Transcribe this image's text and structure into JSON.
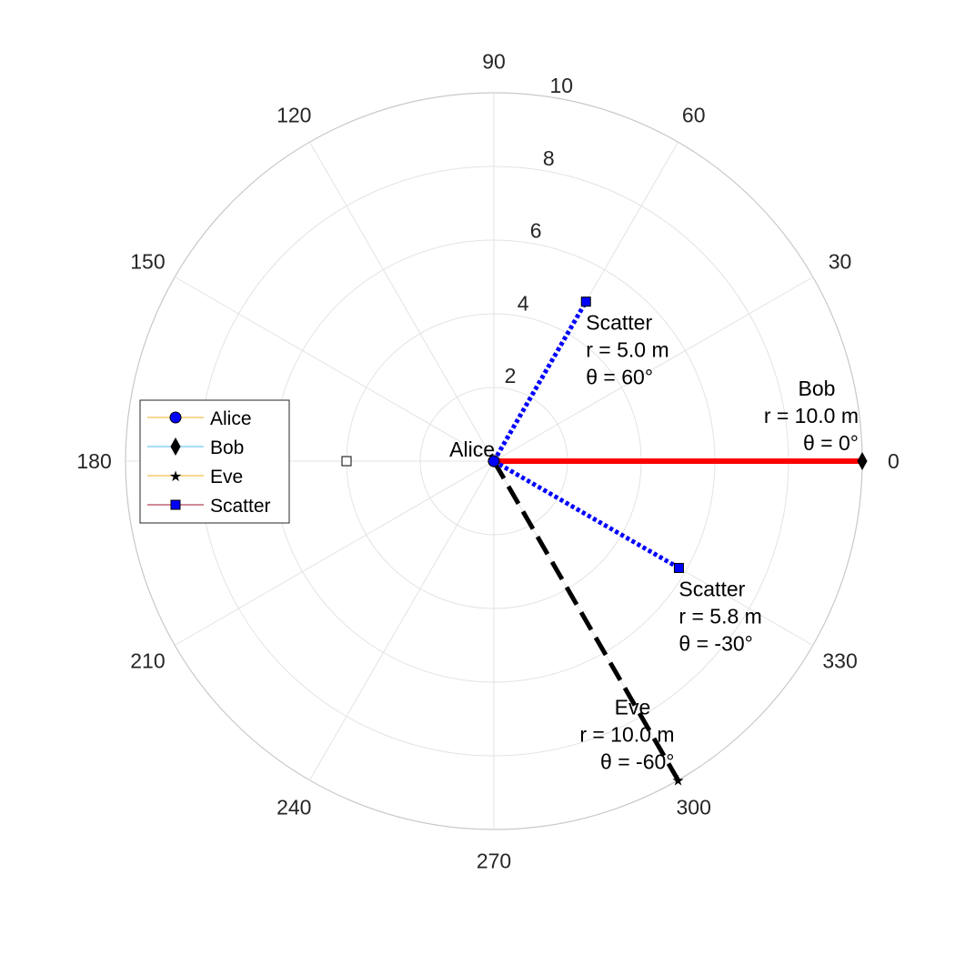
{
  "chart_data": {
    "type": "polar",
    "rlim": [
      0,
      10
    ],
    "r_ticks": [
      "2",
      "4",
      "6",
      "8",
      "10"
    ],
    "theta_ticks": [
      "0",
      "30",
      "60",
      "90",
      "120",
      "150",
      "180",
      "210",
      "240",
      "270",
      "300",
      "330"
    ],
    "grid": true,
    "legend": {
      "placement": "left",
      "entries": [
        {
          "name": "Alice",
          "marker": "circle",
          "line_color": "#EDB120",
          "marker_fill": "#0000FF"
        },
        {
          "name": "Bob",
          "marker": "diamond",
          "line_color": "#4DBEEE",
          "marker_fill": "#000000"
        },
        {
          "name": "Eve",
          "marker": "star",
          "line_color": "#EDB120",
          "marker_fill": "#000000"
        },
        {
          "name": "Scatter",
          "marker": "square",
          "line_color": "#A2142F",
          "marker_fill": "#0000FF"
        }
      ]
    },
    "points": [
      {
        "name": "Alice",
        "r": 0,
        "theta": 0,
        "marker": "circle",
        "color": "#0000FF"
      },
      {
        "name": "Bob",
        "r": 10.0,
        "theta": 0,
        "marker": "diamond",
        "color": "#000000"
      },
      {
        "name": "Eve",
        "r": 10.0,
        "theta": -60,
        "marker": "star",
        "color": "#000000"
      },
      {
        "name": "Scatter",
        "r": 5.0,
        "theta": 60,
        "marker": "square",
        "color": "#0000FF"
      },
      {
        "name": "Scatter",
        "r": 5.8,
        "theta": -30,
        "marker": "square",
        "color": "#0000FF"
      },
      {
        "name": "",
        "r": 4.0,
        "theta": 180,
        "marker": "square-open",
        "color": "#000000"
      }
    ],
    "links": [
      {
        "to": "Bob",
        "r": 10.0,
        "theta": 0,
        "style": "solid",
        "color": "#FF0000"
      },
      {
        "to": "Eve",
        "r": 10.0,
        "theta": -60,
        "style": "dashed",
        "color": "#000000"
      },
      {
        "to": "Scatter",
        "r": 5.0,
        "theta": 60,
        "style": "dotted",
        "color": "#0000FF"
      },
      {
        "to": "Scatter",
        "r": 5.8,
        "theta": -30,
        "style": "dotted",
        "color": "#0000FF"
      }
    ],
    "annotations": [
      {
        "r": 0,
        "theta": 0,
        "lines": [
          "Alice"
        ],
        "align": "end"
      },
      {
        "r": 10.0,
        "theta": 0,
        "lines": [
          "Bob",
          "r  = 10.0 m",
          "θ = 0°"
        ],
        "align": "end"
      },
      {
        "r": 10.0,
        "theta": -60,
        "lines": [
          "Eve",
          "r  = 10.0 m",
          "θ = -60°"
        ],
        "align": "end"
      },
      {
        "r": 5.0,
        "theta": 60,
        "lines": [
          "Scatter",
          "r  = 5.0 m",
          "θ = 60°"
        ],
        "align": "start"
      },
      {
        "r": 5.8,
        "theta": -30,
        "lines": [
          "Scatter",
          "r  = 5.8 m",
          "θ = -30°"
        ],
        "align": "start"
      }
    ]
  }
}
